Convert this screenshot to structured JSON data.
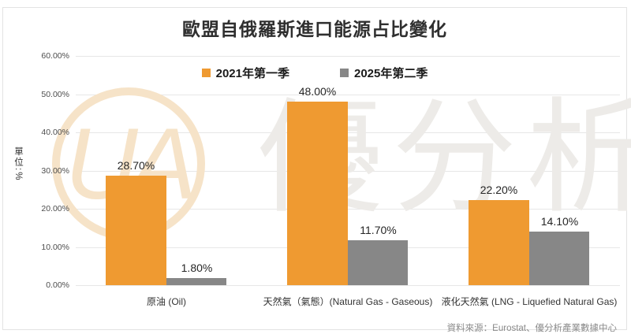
{
  "chart_data": {
    "type": "bar",
    "title": "歐盟自俄羅斯進口能源占比變化",
    "ylabel": "單位:%",
    "xlabel": "",
    "ylim": [
      0,
      60
    ],
    "grid": true,
    "legend_position": "top-center",
    "yticks": [
      0,
      10,
      20,
      30,
      40,
      50,
      60
    ],
    "ytick_labels": [
      "0.00%",
      "10.00%",
      "20.00%",
      "30.00%",
      "40.00%",
      "50.00%",
      "60.00%"
    ],
    "categories": [
      "原油 (Oil)",
      "天然氣（氣態）(Natural Gas - Gaseous)",
      "液化天然氣 (LNG - Liquefied Natural Gas)"
    ],
    "series": [
      {
        "name": "2021年第一季",
        "color": "#ef9a31",
        "values": [
          28.7,
          48.0,
          22.2
        ],
        "labels": [
          "28.70%",
          "48.00%",
          "22.20%"
        ]
      },
      {
        "name": "2025年第二季",
        "color": "#878787",
        "values": [
          1.8,
          11.7,
          14.1
        ],
        "labels": [
          "1.80%",
          "11.70%",
          "14.10%"
        ]
      }
    ]
  },
  "watermark": {
    "text": "優分析",
    "logo_text": "UA"
  },
  "source": "資料來源：Eurostat、優分析產業數據中心",
  "colors": {
    "accent_orange": "#ef9a31",
    "series_gray": "#878787",
    "gridline": "#e7e7e7",
    "watermark_gray": "#edebe8",
    "watermark_orange": "#f6e3c8"
  }
}
